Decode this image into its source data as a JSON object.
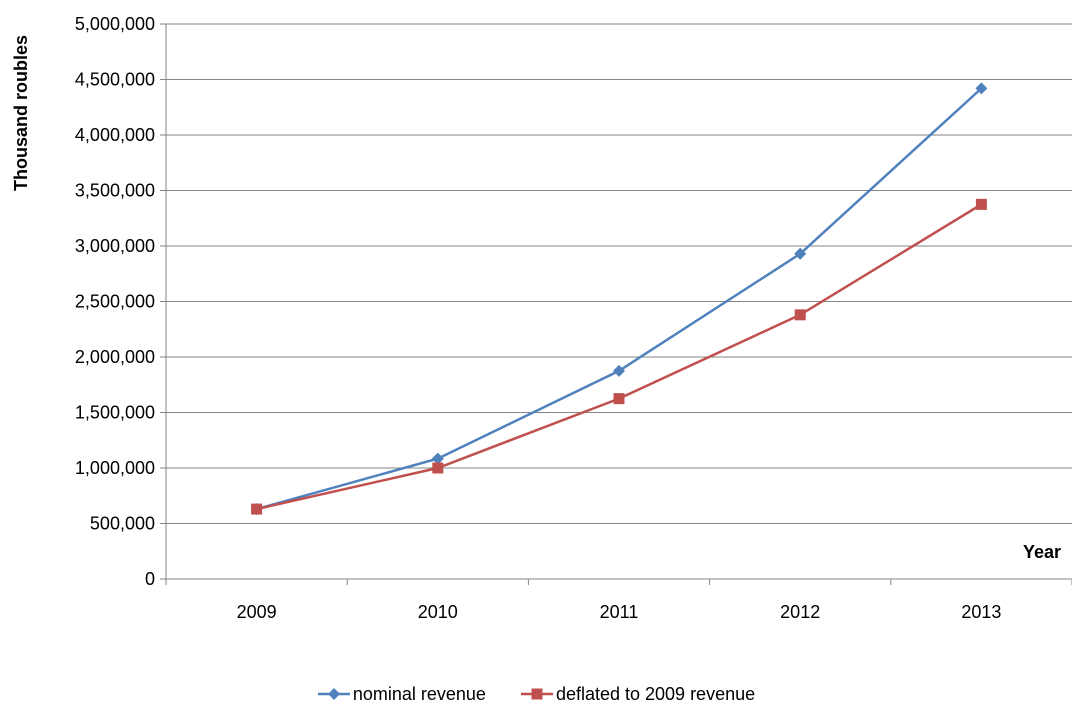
{
  "chart_data": {
    "type": "line",
    "title": "",
    "xlabel": "Year",
    "ylabel": "Thousand roubles",
    "categories": [
      "2009",
      "2010",
      "2011",
      "2012",
      "2013"
    ],
    "ylim": [
      0,
      5000000
    ],
    "yticks": [
      0,
      500000,
      1000000,
      1500000,
      2000000,
      2500000,
      3000000,
      3500000,
      4000000,
      4500000,
      5000000
    ],
    "ytick_labels": [
      "0",
      "500,000",
      "1,000,000",
      "1,500,000",
      "2,000,000",
      "2,500,000",
      "3,000,000",
      "3,500,000",
      "4,000,000",
      "4,500,000",
      "5,000,000"
    ],
    "grid": "horizontal",
    "legend_position": "bottom",
    "series": [
      {
        "name": "nominal revenue",
        "color": "#4F81BD",
        "marker": "diamond",
        "values": [
          630000,
          1085000,
          1875000,
          2930000,
          4420000
        ]
      },
      {
        "name": "deflated to 2009 revenue",
        "color": "#C0504D",
        "marker": "square",
        "values": [
          630000,
          1000000,
          1625000,
          2380000,
          3375000
        ]
      }
    ]
  }
}
